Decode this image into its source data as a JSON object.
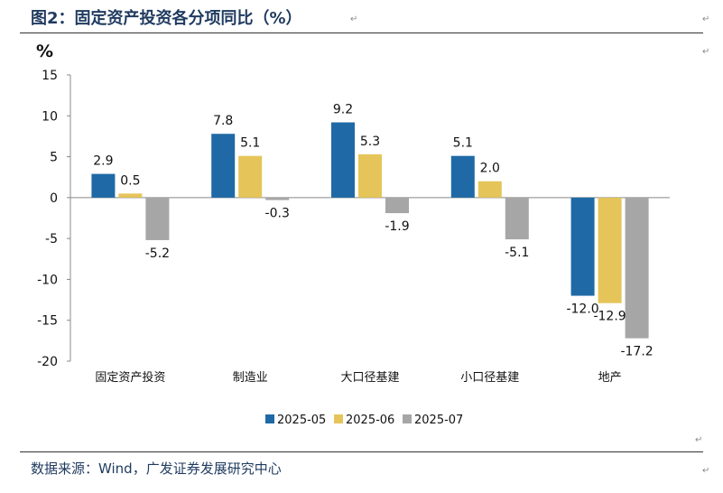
{
  "header": {
    "title": "图2：固定资产投资各分项同比（%）"
  },
  "footer": {
    "source": "数据来源：Wind，广发证券发展研究中心"
  },
  "marks": {
    "para": "↵"
  },
  "colors": {
    "title": "#1f3a5f",
    "s1": "#1f6aa6",
    "s2": "#e5c55a",
    "s3": "#a6a6a6"
  },
  "chart_data": {
    "type": "bar",
    "title": "",
    "xlabel": "",
    "ylabel": "%",
    "ylim": [
      -20,
      15
    ],
    "yticks": [
      15,
      10,
      5,
      0,
      -5,
      -10,
      -15,
      -20
    ],
    "grid": false,
    "legend": "bottom",
    "categories": [
      "固定资产投资",
      "制造业",
      "大口径基建",
      "小口径基建",
      "地产"
    ],
    "series": [
      {
        "name": "2025-05",
        "color": "#1f6aa6",
        "values": [
          2.9,
          7.8,
          9.2,
          5.1,
          -12.0
        ]
      },
      {
        "name": "2025-06",
        "color": "#e5c55a",
        "values": [
          0.5,
          5.1,
          5.3,
          2.0,
          -12.9
        ]
      },
      {
        "name": "2025-07",
        "color": "#a6a6a6",
        "values": [
          -5.2,
          -0.3,
          -1.9,
          -5.1,
          -17.2
        ]
      }
    ]
  }
}
